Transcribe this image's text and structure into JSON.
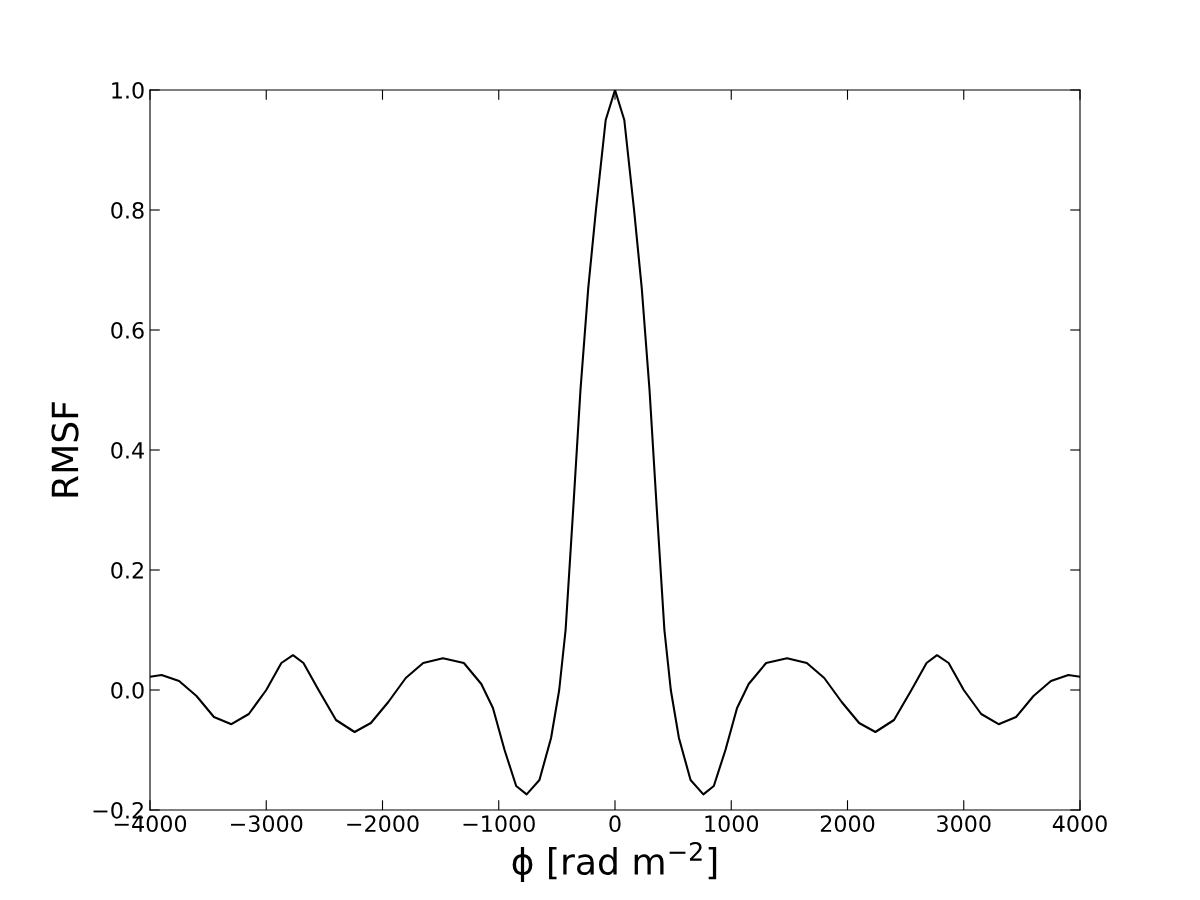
{
  "chart_data": {
    "type": "line",
    "xlabel": "ϕ [rad m$^{−2}$]",
    "ylabel": "RMSF",
    "x": [
      -4000,
      -3900,
      -3750,
      -3600,
      -3450,
      -3300,
      -3150,
      -3000,
      -2870,
      -2770,
      -2680,
      -2550,
      -2400,
      -2240,
      -2100,
      -1950,
      -1800,
      -1650,
      -1480,
      -1300,
      -1150,
      -1050,
      -950,
      -850,
      -760,
      -650,
      -550,
      -480,
      -425,
      -360,
      -297,
      -230,
      -164,
      -80,
      0,
      80,
      164,
      230,
      297,
      360,
      425,
      480,
      550,
      650,
      760,
      850,
      950,
      1050,
      1150,
      1300,
      1480,
      1650,
      1800,
      1950,
      2100,
      2240,
      2400,
      2550,
      2680,
      2770,
      2870,
      3000,
      3150,
      3300,
      3450,
      3600,
      3750,
      3900,
      4000
    ],
    "series": [
      {
        "color": "#000000",
        "values": [
          0.022,
          0.025,
          0.015,
          -0.01,
          -0.045,
          -0.057,
          -0.04,
          0.0,
          0.045,
          0.058,
          0.045,
          0.0,
          -0.05,
          -0.07,
          -0.055,
          -0.02,
          0.02,
          0.045,
          0.053,
          0.045,
          0.01,
          -0.03,
          -0.1,
          -0.16,
          -0.174,
          -0.15,
          -0.08,
          0.0,
          0.1,
          0.3,
          0.5,
          0.67,
          0.8,
          0.95,
          1.0,
          0.95,
          0.8,
          0.67,
          0.5,
          0.3,
          0.1,
          0.0,
          -0.08,
          -0.15,
          -0.174,
          -0.16,
          -0.1,
          -0.03,
          0.01,
          0.045,
          0.053,
          0.045,
          0.02,
          -0.02,
          -0.055,
          -0.07,
          -0.05,
          0.0,
          0.045,
          0.058,
          0.045,
          0.0,
          -0.04,
          -0.057,
          -0.045,
          -0.01,
          0.015,
          0.025,
          0.022
        ]
      }
    ],
    "xlim": [
      -4000,
      4000
    ],
    "ylim": [
      -0.2,
      1.0
    ],
    "xticks": [
      {
        "value": -4000,
        "label": "−4000"
      },
      {
        "value": -3000,
        "label": "−3000"
      },
      {
        "value": -2000,
        "label": "−2000"
      },
      {
        "value": -1000,
        "label": "−1000"
      },
      0,
      1000,
      2000,
      3000,
      4000
    ],
    "yticks": [
      {
        "value": -0.2,
        "label": "−0.2"
      },
      {
        "value": 0.0,
        "label": "0.0"
      },
      {
        "value": 0.2,
        "label": "0.2"
      },
      {
        "value": 0.4,
        "label": "0.4"
      },
      {
        "value": 0.6,
        "label": "0.6"
      },
      {
        "value": 0.8,
        "label": "0.8"
      },
      {
        "value": 1.0,
        "label": "1.0"
      }
    ],
    "grid": false,
    "legend": false
  }
}
